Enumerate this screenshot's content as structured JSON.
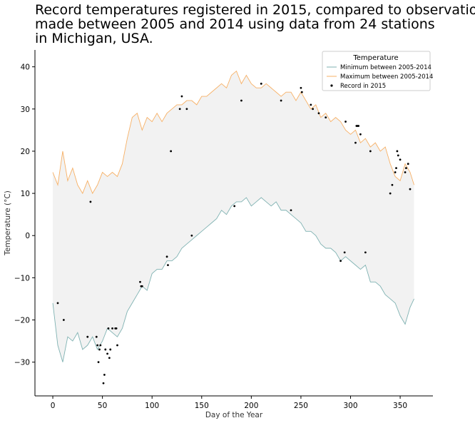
{
  "chart_data": {
    "type": "line",
    "title_lines": [
      "Record temperatures registered in 2015, compared to observations",
      "made between 2005 and 2014 using data from 24 stations",
      "in Michigan, USA."
    ],
    "xlabel": "Day of the Year",
    "ylabel": "Temperature (°C)",
    "xlim": [
      -18,
      383
    ],
    "ylim": [
      -38,
      44
    ],
    "xticks": [
      0,
      50,
      100,
      150,
      200,
      250,
      300,
      350
    ],
    "yticks": [
      -30,
      -20,
      -10,
      0,
      10,
      20,
      30,
      40
    ],
    "grid": false,
    "legend": {
      "title": "Temperature",
      "placement": "top-right",
      "entries": [
        "Minimum between 2005-2014",
        "Maximum between 2005-2014",
        "Record in 2015"
      ]
    },
    "colors": {
      "min": "#7fb2b2",
      "max": "#f7b065",
      "fill": "#f2f2f2",
      "record": "#000000"
    },
    "series": [
      {
        "name": "Minimum between 2005-2014",
        "x": [
          0,
          5,
          10,
          15,
          20,
          25,
          30,
          35,
          40,
          45,
          50,
          55,
          60,
          65,
          70,
          75,
          80,
          85,
          90,
          95,
          100,
          105,
          110,
          115,
          120,
          125,
          130,
          135,
          140,
          145,
          150,
          155,
          160,
          165,
          170,
          175,
          180,
          185,
          190,
          195,
          200,
          205,
          210,
          215,
          220,
          225,
          230,
          235,
          240,
          245,
          250,
          255,
          260,
          265,
          270,
          275,
          280,
          285,
          290,
          295,
          300,
          305,
          310,
          315,
          320,
          325,
          330,
          335,
          340,
          345,
          350,
          355,
          360,
          364
        ],
        "y": [
          -16,
          -26,
          -30,
          -24,
          -25,
          -23,
          -27,
          -26,
          -24,
          -27,
          -25,
          -22,
          -23,
          -24,
          -22,
          -18,
          -16,
          -14,
          -12,
          -13,
          -9,
          -8,
          -8,
          -6,
          -6,
          -5,
          -3,
          -2,
          -1,
          0,
          1,
          2,
          3,
          4,
          6,
          5,
          7,
          8,
          8,
          9,
          7,
          8,
          9,
          8,
          7,
          8,
          6,
          6,
          5,
          4,
          3,
          1,
          1,
          0,
          -2,
          -3,
          -3,
          -4,
          -6,
          -5,
          -6,
          -7,
          -8,
          -7,
          -11,
          -11,
          -12,
          -14,
          -15,
          -16,
          -19,
          -21,
          -17,
          -15
        ]
      },
      {
        "name": "Maximum between 2005-2014",
        "x": [
          0,
          5,
          10,
          15,
          20,
          25,
          30,
          35,
          40,
          45,
          50,
          55,
          60,
          65,
          70,
          75,
          80,
          85,
          90,
          95,
          100,
          105,
          110,
          115,
          120,
          125,
          130,
          135,
          140,
          145,
          150,
          155,
          160,
          165,
          170,
          175,
          180,
          185,
          190,
          195,
          200,
          205,
          210,
          215,
          220,
          225,
          230,
          235,
          240,
          245,
          250,
          255,
          260,
          265,
          270,
          275,
          280,
          285,
          290,
          295,
          300,
          305,
          310,
          315,
          320,
          325,
          330,
          335,
          340,
          345,
          350,
          355,
          360,
          364
        ],
        "y": [
          15,
          12,
          20,
          13,
          16,
          12,
          10,
          13,
          10,
          12,
          15,
          14,
          15,
          14,
          17,
          23,
          28,
          29,
          25,
          28,
          27,
          29,
          27,
          29,
          30,
          31,
          31,
          32,
          32,
          31,
          33,
          33,
          34,
          35,
          36,
          35,
          38,
          39,
          36,
          38,
          36,
          35,
          35,
          36,
          35,
          34,
          33,
          34,
          34,
          32,
          34,
          32,
          30,
          31,
          28,
          29,
          27,
          28,
          27,
          25,
          24,
          25,
          22,
          23,
          21,
          22,
          20,
          21,
          17,
          14,
          13,
          17,
          15,
          12
        ]
      },
      {
        "name": "Record in 2015",
        "type": "scatter",
        "x": [
          5,
          11,
          38,
          35,
          44,
          45,
          46,
          47,
          48,
          51,
          52,
          53,
          55,
          56,
          57,
          58,
          60,
          63,
          64,
          65,
          88,
          89,
          90,
          115,
          116,
          119,
          128,
          130,
          135,
          140,
          183,
          190,
          210,
          230,
          240,
          250,
          251,
          260,
          262,
          268,
          275,
          290,
          294,
          295,
          305,
          306,
          307,
          308,
          310,
          315,
          320,
          340,
          342,
          345,
          346,
          347,
          348,
          350,
          355,
          356,
          358,
          360
        ],
        "y": [
          -16,
          -20,
          8,
          -24,
          -24,
          -26,
          -30,
          -27,
          -26,
          -35,
          -33,
          -27,
          -28,
          -22,
          -29,
          -27,
          -22,
          -22,
          -22,
          -26,
          -11,
          -12,
          -12,
          -5,
          -7,
          20,
          30,
          33,
          30,
          0,
          7,
          32,
          36,
          32,
          6,
          35,
          34,
          31,
          30,
          29,
          28,
          -6,
          -4,
          27,
          22,
          26,
          26,
          26,
          24,
          -4,
          20,
          10,
          12,
          15,
          16,
          20,
          19,
          18,
          15,
          16,
          17,
          11
        ]
      }
    ]
  }
}
